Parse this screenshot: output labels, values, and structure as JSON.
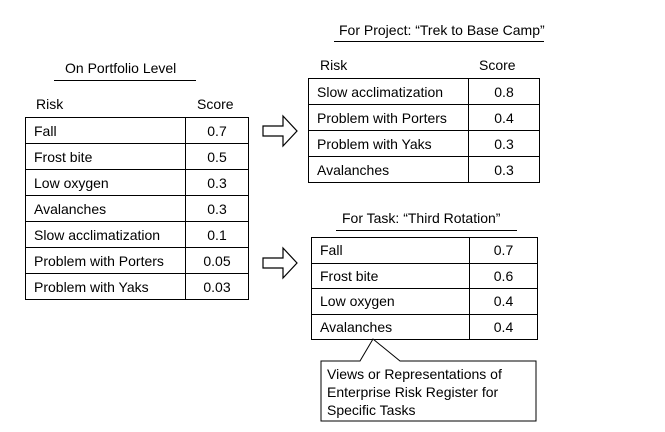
{
  "portfolio": {
    "title": "On Portfolio Level",
    "header": {
      "risk": "Risk",
      "score": "Score"
    },
    "rows": [
      {
        "risk": "Fall",
        "score": "0.7"
      },
      {
        "risk": "Frost bite",
        "score": "0.5"
      },
      {
        "risk": "Low oxygen",
        "score": "0.3"
      },
      {
        "risk": "Avalanches",
        "score": "0.3"
      },
      {
        "risk": "Slow acclimatization",
        "score": "0.1"
      },
      {
        "risk": "Problem with Porters",
        "score": "0.05"
      },
      {
        "risk": "Problem with Yaks",
        "score": "0.03"
      }
    ]
  },
  "project": {
    "title": "For Project: “Trek to Base Camp”",
    "header": {
      "risk": "Risk",
      "score": "Score"
    },
    "rows": [
      {
        "risk": "Slow acclimatization",
        "score": "0.8"
      },
      {
        "risk": "Problem with Porters",
        "score": "0.4"
      },
      {
        "risk": "Problem with Yaks",
        "score": "0.3"
      },
      {
        "risk": "Avalanches",
        "score": "0.3"
      }
    ]
  },
  "task": {
    "title": "For Task: “Third Rotation”",
    "rows": [
      {
        "risk": "Fall",
        "score": "0.7"
      },
      {
        "risk": "Frost bite",
        "score": "0.6"
      },
      {
        "risk": "Low oxygen",
        "score": "0.4"
      },
      {
        "risk": "Avalanches",
        "score": "0.4"
      }
    ]
  },
  "callout": {
    "lines": [
      "Views or Representations of",
      "Enterprise Risk Register for",
      "Specific Tasks"
    ]
  }
}
